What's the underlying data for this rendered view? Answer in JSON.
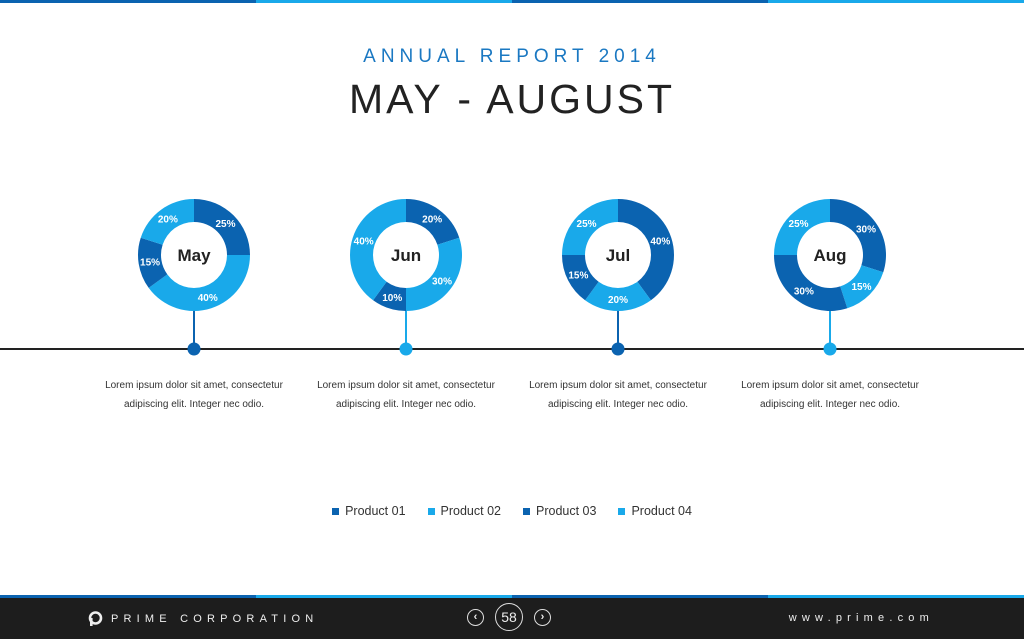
{
  "header": {
    "subtitle": "ANNUAL REPORT 2014",
    "title": "MAY - AUGUST"
  },
  "colors": {
    "dark_blue": "#0b63b0",
    "light_blue": "#19a9ea",
    "timeline": "#222222"
  },
  "chart_data": {
    "type": "pie",
    "variant": "donut",
    "series_names": [
      "Product 01",
      "Product 02",
      "Product 03",
      "Product 04"
    ],
    "charts": [
      {
        "label": "May",
        "values": [
          25,
          40,
          15,
          20
        ],
        "labels": [
          "25%",
          "40%",
          "15%",
          "20%"
        ],
        "marker": "dark",
        "description": "Lorem ipsum dolor sit amet, consectetur adipiscing elit. Integer nec odio."
      },
      {
        "label": "Jun",
        "values": [
          20,
          30,
          10,
          40
        ],
        "labels": [
          "20%",
          "30%",
          "10%",
          "40%"
        ],
        "marker": "light",
        "description": "Lorem ipsum dolor sit amet, consectetur adipiscing elit. Integer nec odio."
      },
      {
        "label": "Jul",
        "values": [
          40,
          20,
          15,
          25
        ],
        "labels": [
          "40%",
          "20%",
          "15%",
          "25%"
        ],
        "marker": "dark",
        "description": "Lorem ipsum dolor sit amet, consectetur adipiscing elit. Integer nec odio."
      },
      {
        "label": "Aug",
        "values": [
          30,
          15,
          30,
          25
        ],
        "labels": [
          "30%",
          "15%",
          "30%",
          "25%"
        ],
        "marker": "light",
        "description": "Lorem ipsum dolor sit amet, consectetur adipiscing elit. Integer nec odio."
      }
    ],
    "legend": {
      "position": "bottom-center",
      "items": [
        {
          "name": "Product 01",
          "color": "#0b63b0"
        },
        {
          "name": "Product 02",
          "color": "#19a9ea"
        },
        {
          "name": "Product 03",
          "color": "#0b63b0"
        },
        {
          "name": "Product 04",
          "color": "#19a9ea"
        }
      ]
    }
  },
  "footer": {
    "company": "PRIME CORPORATION",
    "page_number": "58",
    "prev_icon": "chevron-left-icon",
    "next_icon": "chevron-right-icon",
    "prev_glyph": "‹",
    "next_glyph": "›",
    "website": "www.prime.com"
  }
}
